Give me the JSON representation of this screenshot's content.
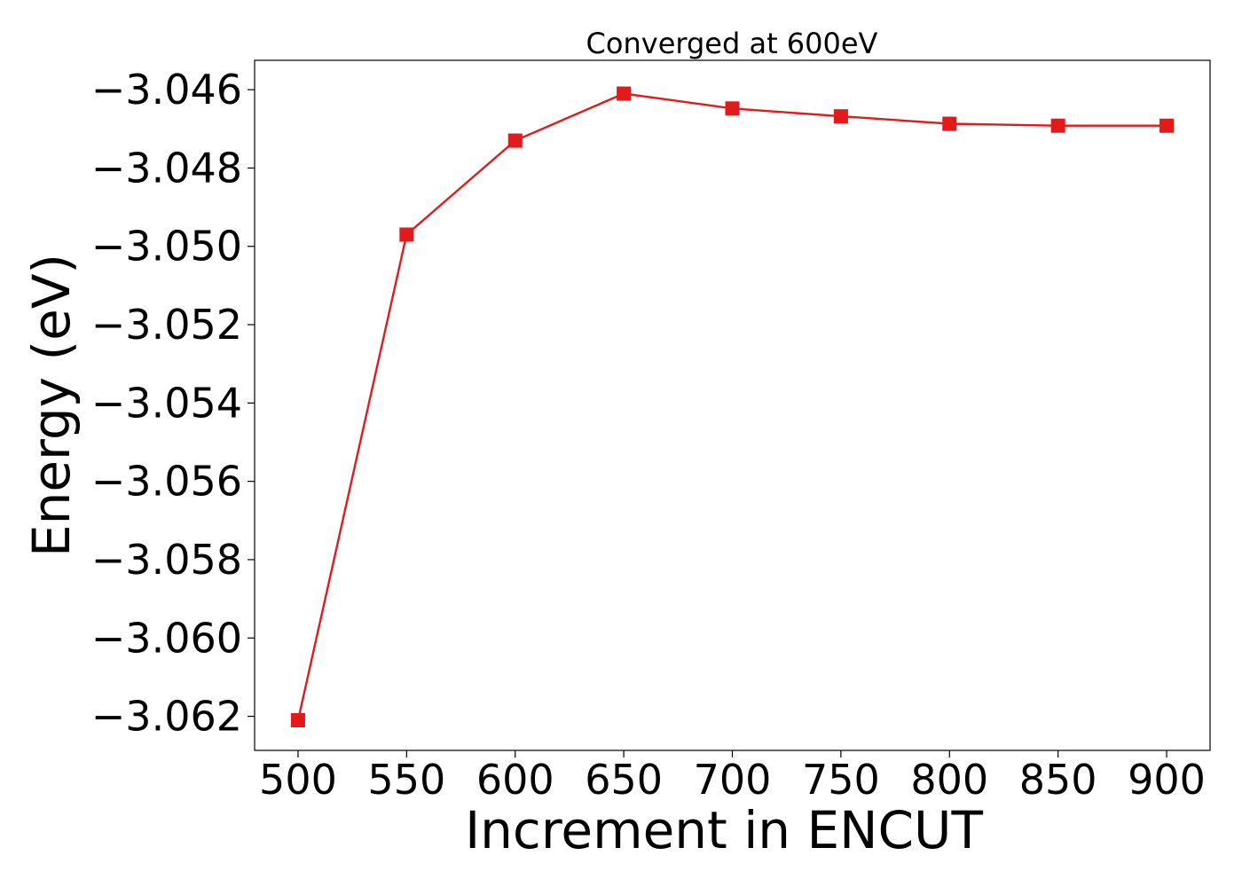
{
  "chart_data": {
    "type": "line",
    "title": "Converged at 600eV",
    "xlabel": "Increment in ENCUT",
    "ylabel": "Energy (eV)",
    "x": [
      500,
      550,
      600,
      650,
      700,
      750,
      800,
      850,
      900
    ],
    "series": [
      {
        "values": [
          -3.0621,
          -3.0497,
          -3.0473,
          -3.0461,
          -3.04648,
          -3.04668,
          -3.04687,
          -3.04692,
          -3.04692
        ],
        "color": "#e31a1c",
        "marker": "square"
      }
    ],
    "xticks": [
      500,
      550,
      600,
      650,
      700,
      750,
      800,
      850,
      900
    ],
    "xtick_labels": [
      "500",
      "550",
      "600",
      "650",
      "700",
      "750",
      "800",
      "850",
      "900"
    ],
    "yticks": [
      -3.046,
      -3.048,
      -3.05,
      -3.052,
      -3.054,
      -3.056,
      -3.058,
      -3.06,
      -3.062
    ],
    "ytick_labels": [
      "−3.046",
      "−3.048",
      "−3.050",
      "−3.052",
      "−3.054",
      "−3.056",
      "−3.058",
      "−3.060",
      "−3.062"
    ],
    "xlim": [
      480,
      920
    ],
    "ylim": [
      -3.06287,
      -3.04525
    ],
    "grid": false,
    "legend": "none"
  }
}
